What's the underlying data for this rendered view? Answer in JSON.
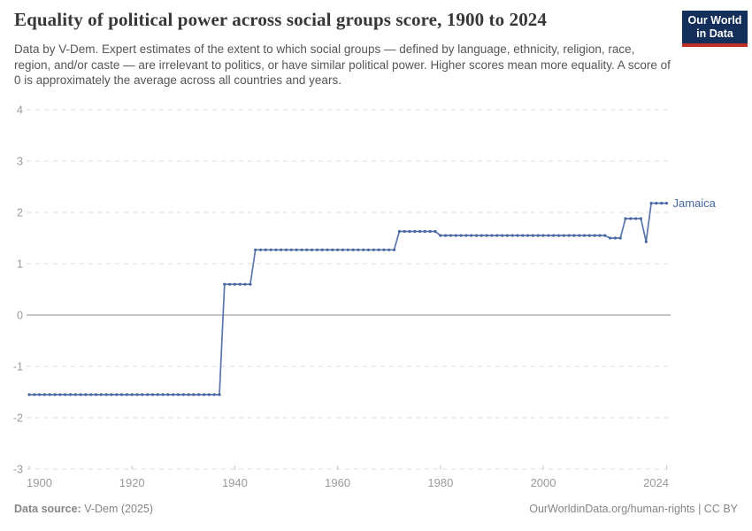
{
  "header": {
    "title": "Equality of political power across social groups score, 1900 to 2024",
    "subtitle": "Data by V-Dem. Expert estimates of the extent to which social groups — defined by language, ethnicity, religion, race, region, and/or caste — are irrelevant to politics, or have similar political power. Higher scores mean more equality. A score of 0 is approximately the average across all countries and years.",
    "logo": {
      "line1": "Our World",
      "line2": "in Data",
      "bg_color": "#142f5a",
      "bar_color": "#bf2e26"
    }
  },
  "chart_data": {
    "type": "line",
    "title": "Equality of political power across social groups score, 1900 to 2024",
    "entity_label": "Jamaica",
    "x_axis": {
      "min": 1900,
      "max": 2024,
      "ticks": [
        1900,
        1920,
        1940,
        1960,
        1980,
        2000,
        2024
      ]
    },
    "y_axis": {
      "min": -3,
      "max": 4,
      "ticks": [
        4,
        3,
        2,
        1,
        0,
        -1,
        -2,
        -3
      ]
    },
    "grid": "dashed horizontal gridlines, solid line at 0",
    "legend_position": "end-of-line label",
    "series": [
      {
        "name": "Jamaica",
        "color": "#4766a2",
        "segments": [
          {
            "from": 1900,
            "to": 1937,
            "value": -1.55
          },
          {
            "from": 1938,
            "to": 1943,
            "value": 0.6
          },
          {
            "from": 1944,
            "to": 1971,
            "value": 1.27
          },
          {
            "from": 1972,
            "to": 1979,
            "value": 1.63
          },
          {
            "from": 1980,
            "to": 2012,
            "value": 1.55
          },
          {
            "from": 2013,
            "to": 2015,
            "value": 1.5
          },
          {
            "from": 2016,
            "to": 2019,
            "value": 1.88
          },
          {
            "from": 2020,
            "to": 2020,
            "value": 1.43
          },
          {
            "from": 2021,
            "to": 2024,
            "value": 2.18
          }
        ]
      }
    ],
    "colors": {
      "gridline": "#dedede",
      "zero_line": "#8b8b8b",
      "axis_text": "#9a9a9a",
      "tick_mark": "#c4c4c4"
    }
  },
  "footer": {
    "source_label": "Data source:",
    "source_value": " V-Dem (2025)",
    "right_text": "OurWorldinData.org/human-rights | CC BY"
  }
}
